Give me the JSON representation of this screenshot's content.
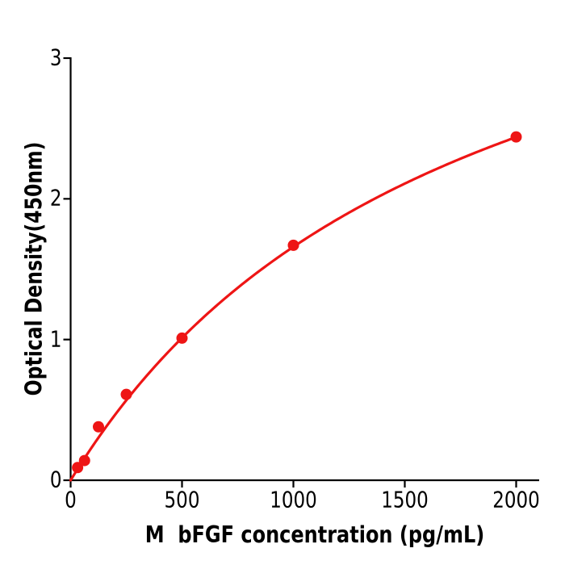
{
  "chart_data": {
    "type": "line",
    "title": "",
    "xlabel": "M  bFGF concentration (pg/mL)",
    "ylabel": "Optical Density(450nm)",
    "x": [
      31.25,
      62.5,
      125,
      250,
      500,
      1000,
      2000
    ],
    "y": [
      0.09,
      0.14,
      0.38,
      0.61,
      1.01,
      1.67,
      2.44
    ],
    "xlim": [
      0,
      2000
    ],
    "ylim": [
      0,
      3
    ],
    "xticks": [
      0,
      500,
      1000,
      1500,
      2000
    ],
    "yticks": [
      0,
      1,
      2,
      3
    ],
    "grid": false,
    "legend": "none",
    "marker": "filled-circle",
    "curve_fit": {
      "model": "saturation y=a*x/(b+x)",
      "a": 4.6,
      "b": 1773
    },
    "colors": {
      "curve": "#ee1515",
      "marker": "#ee1515",
      "axis": "#000000",
      "text": "#000000",
      "background": "#ffffff"
    }
  }
}
